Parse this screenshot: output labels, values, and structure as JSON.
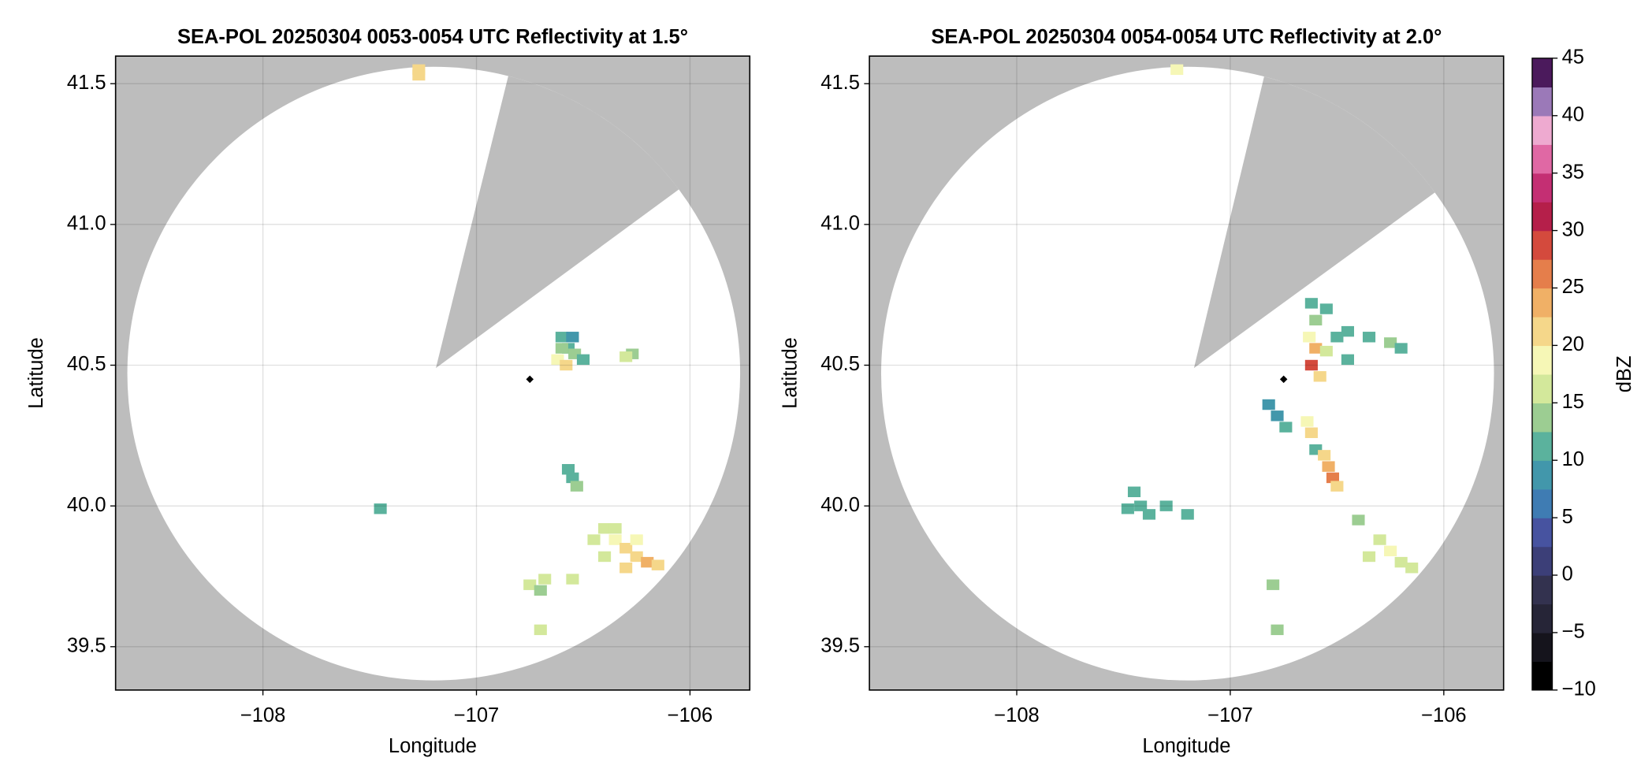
{
  "chart_data": [
    {
      "type": "scatter",
      "title": "SEA-POL 20250304 0053-0054 UTC Reflectivity at 1.5°",
      "xlabel": "Longitude",
      "ylabel": "Latitude",
      "xlim": [
        -108.69,
        -105.72
      ],
      "ylim": [
        39.346,
        41.598
      ],
      "xticks": [
        {
          "value": -108,
          "label": "−108"
        },
        {
          "value": -107,
          "label": "−107"
        },
        {
          "value": -106,
          "label": "−106"
        }
      ],
      "yticks": [
        39.5,
        {
          "value": 40,
          "label": "40.0"
        },
        40.5,
        {
          "value": 41,
          "label": "41.0"
        },
        41.5
      ],
      "grid": true,
      "coverage": {
        "center_x": -107.2,
        "center_y": 40.47,
        "radius_x": 1.435,
        "radius_y": 1.09,
        "blocked": [
          [
            -106.85,
            41.53
          ],
          [
            -107.19,
            40.49
          ],
          [
            -106.06,
            41.12
          ]
        ]
      },
      "site_x": -106.75,
      "site_y": 40.45,
      "x": [
        -107.27,
        -107.27,
        -106.6,
        -106.57,
        -106.62,
        -106.58,
        -106.54,
        -106.5,
        -106.55,
        -106.6,
        -106.27,
        -106.3,
        -106.57,
        -106.55,
        -106.53,
        -107.45,
        -106.4,
        -106.35,
        -106.3,
        -106.25,
        -106.2,
        -106.15,
        -106.3,
        -106.4,
        -106.45,
        -106.35,
        -106.25,
        -106.75,
        -106.7,
        -106.68,
        -106.55,
        -106.7
      ],
      "y": [
        41.55,
        41.53,
        40.6,
        40.56,
        40.52,
        40.5,
        40.54,
        40.52,
        40.6,
        40.56,
        40.54,
        40.53,
        40.13,
        40.1,
        40.07,
        39.99,
        39.92,
        39.88,
        39.85,
        39.82,
        39.8,
        39.79,
        39.78,
        39.82,
        39.88,
        39.92,
        39.88,
        39.72,
        39.7,
        39.74,
        39.74,
        39.56
      ],
      "values": [
        20,
        22,
        10,
        12,
        18,
        22,
        14,
        10,
        8,
        14,
        14,
        16,
        12,
        10,
        14,
        10,
        16,
        18,
        22,
        20,
        24,
        22,
        20,
        16,
        15,
        17,
        18,
        15,
        14,
        16,
        15,
        16
      ]
    },
    {
      "type": "scatter",
      "title": "SEA-POL 20250304 0054-0054 UTC Reflectivity at 2.0°",
      "xlabel": "Longitude",
      "ylabel": "Latitude",
      "xlim": [
        -108.69,
        -105.72
      ],
      "ylim": [
        39.346,
        41.598
      ],
      "xticks": [
        {
          "value": -108,
          "label": "−108"
        },
        {
          "value": -107,
          "label": "−107"
        },
        {
          "value": -106,
          "label": "−106"
        }
      ],
      "yticks": [
        39.5,
        {
          "value": 40,
          "label": "40.0"
        },
        40.5,
        {
          "value": 41,
          "label": "41.0"
        },
        41.5
      ],
      "grid": true,
      "coverage": {
        "center_x": -107.2,
        "center_y": 40.47,
        "radius_x": 1.435,
        "radius_y": 1.09,
        "blocked": [
          [
            -106.84,
            41.53
          ],
          [
            -107.17,
            40.49
          ],
          [
            -106.03,
            41.12
          ]
        ]
      },
      "site_x": -106.75,
      "site_y": 40.45,
      "x": [
        -107.25,
        -106.62,
        -106.6,
        -106.63,
        -106.6,
        -106.62,
        -106.58,
        -106.55,
        -106.5,
        -106.45,
        -106.35,
        -106.25,
        -106.2,
        -106.55,
        -106.45,
        -106.82,
        -106.78,
        -106.74,
        -106.64,
        -106.62,
        -106.6,
        -106.56,
        -106.54,
        -106.52,
        -106.5,
        -107.45,
        -107.42,
        -107.38,
        -107.48,
        -107.3,
        -107.2,
        -106.4,
        -106.3,
        -106.25,
        -106.2,
        -106.35,
        -106.15,
        -106.8,
        -106.78
      ],
      "y": [
        41.55,
        40.72,
        40.66,
        40.6,
        40.56,
        40.5,
        40.46,
        40.55,
        40.6,
        40.62,
        40.6,
        40.58,
        40.56,
        40.7,
        40.52,
        40.36,
        40.32,
        40.28,
        40.3,
        40.26,
        40.2,
        40.18,
        40.14,
        40.1,
        40.07,
        40.05,
        40.0,
        39.97,
        39.99,
        40.0,
        39.97,
        39.95,
        39.88,
        39.84,
        39.8,
        39.82,
        39.78,
        39.72,
        39.56
      ],
      "values": [
        18,
        12,
        14,
        18,
        24,
        28,
        22,
        16,
        12,
        12,
        12,
        14,
        12,
        10,
        10,
        8,
        8,
        10,
        18,
        22,
        12,
        20,
        24,
        26,
        20,
        10,
        12,
        10,
        12,
        10,
        12,
        14,
        16,
        18,
        17,
        15,
        16,
        14,
        14
      ]
    },
    {
      "type": "colorbar",
      "label": "dBZ",
      "ylim": [
        -10,
        45
      ],
      "yticks": [
        {
          "value": -10,
          "label": "−10"
        },
        {
          "value": -5,
          "label": "−5"
        },
        0,
        5,
        10,
        15,
        20,
        25,
        30,
        35,
        40,
        45
      ],
      "colors": [
        "#000000",
        "#15141c",
        "#262537",
        "#33324f",
        "#3c3f78",
        "#4753a0",
        "#3f7cb3",
        "#4297ab",
        "#5bb29d",
        "#9ccd92",
        "#d3e89b",
        "#f6f7b6",
        "#f5d78a",
        "#f0b066",
        "#e57e4b",
        "#d44a3d",
        "#b51f4a",
        "#c42f73",
        "#e068a4",
        "#eeaad0",
        "#9b79b8",
        "#4b1a5c"
      ]
    }
  ]
}
